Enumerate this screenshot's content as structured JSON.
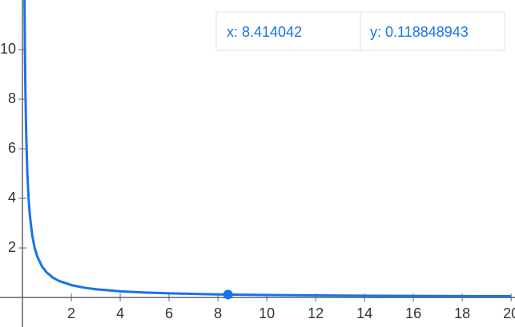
{
  "chart_data": {
    "type": "line",
    "x": [
      0.08,
      0.1,
      0.12,
      0.15,
      0.2,
      0.25,
      0.3,
      0.4,
      0.5,
      0.6,
      0.8,
      1,
      1.25,
      1.5,
      2,
      2.5,
      3,
      4,
      5,
      6,
      8,
      10,
      12,
      14,
      16,
      18,
      20
    ],
    "series": [
      {
        "color": "#1a73e8",
        "values": [
          12.5,
          10,
          8.333,
          6.667,
          5,
          4,
          3.333,
          2.5,
          2,
          1.667,
          1.25,
          1,
          0.8,
          0.667,
          0.5,
          0.4,
          0.333,
          0.25,
          0.2,
          0.167,
          0.125,
          0.1,
          0.0833,
          0.0714,
          0.0625,
          0.0556,
          0.05
        ]
      }
    ],
    "xlim": [
      -0.92,
      20.16
    ],
    "ylim": [
      -1.19,
      12
    ],
    "xticks": [
      2,
      4,
      6,
      8,
      10,
      12,
      14,
      16,
      18,
      20
    ],
    "yticks": [
      2,
      4,
      6,
      8,
      10
    ],
    "highlight": {
      "x": 8.414042,
      "y": 0.118848943,
      "x_label": "x: 8.414042",
      "y_label": "y: 0.118848943"
    }
  }
}
